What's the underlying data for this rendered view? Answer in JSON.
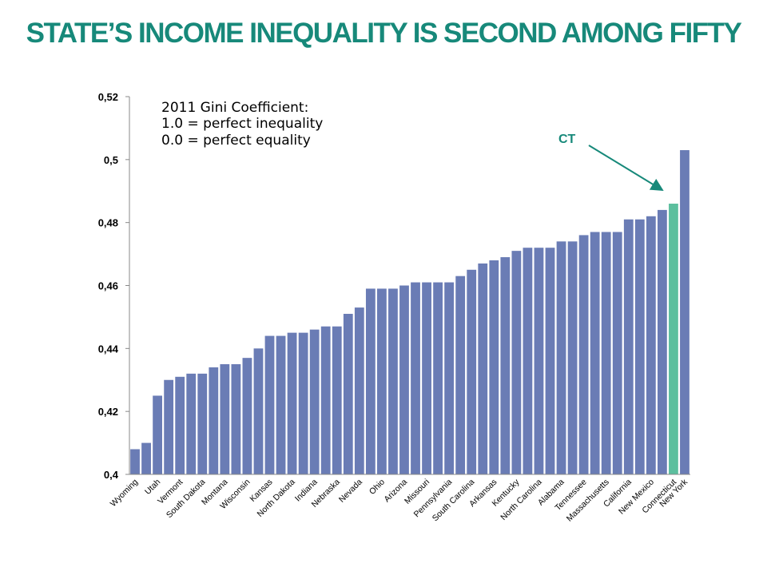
{
  "slide": {
    "title": "STATE’S INCOME INEQUALITY IS SECOND AMONG FIFTY"
  },
  "annotation": {
    "lines": [
      "2011 Gini Coefficient:",
      "1.0 = perfect inequality",
      "0.0 = perfect equality"
    ],
    "callout": "CT"
  },
  "colors": {
    "bar": "#6a7cb5",
    "highlight": "#5cbf9e",
    "accent": "#17897a",
    "axis": "#888888"
  },
  "chart_data": {
    "type": "bar",
    "title": "",
    "xlabel": "",
    "ylabel": "",
    "ylim": [
      0.4,
      0.52
    ],
    "yticks": [
      0.4,
      0.42,
      0.44,
      0.46,
      0.48,
      0.5,
      0.52
    ],
    "ytick_labels": [
      "0,4",
      "0,42",
      "0,44",
      "0,46",
      "0,48",
      "0,5",
      "0,52"
    ],
    "highlight": "Connecticut",
    "grid": false,
    "categories": [
      "Wyoming",
      "",
      "Utah",
      "",
      "Vermont",
      "",
      "South Dakota",
      "",
      "Montana",
      "",
      "Wisconsin",
      "",
      "Kansas",
      "",
      "North Dakota",
      "",
      "Indiana",
      "",
      "Nebraska",
      "",
      "Nevada",
      "",
      "Ohio",
      "",
      "Arizona",
      "",
      "Missouri",
      "",
      "Pennsylvania",
      "",
      "South Carolina",
      "",
      "Arkansas",
      "",
      "Kentucky",
      "",
      "North Carolina",
      "",
      "Alabama",
      "",
      "Tennessee",
      "",
      "Massachusetts",
      "",
      "California",
      "",
      "New Mexico",
      "",
      "Connecticut",
      "New York"
    ],
    "values": [
      0.408,
      0.41,
      0.425,
      0.43,
      0.431,
      0.432,
      0.432,
      0.434,
      0.435,
      0.435,
      0.437,
      0.44,
      0.444,
      0.444,
      0.445,
      0.445,
      0.446,
      0.447,
      0.447,
      0.451,
      0.453,
      0.459,
      0.459,
      0.459,
      0.46,
      0.461,
      0.461,
      0.461,
      0.461,
      0.463,
      0.465,
      0.467,
      0.468,
      0.469,
      0.471,
      0.472,
      0.472,
      0.472,
      0.474,
      0.474,
      0.476,
      0.477,
      0.477,
      0.477,
      0.481,
      0.481,
      0.482,
      0.484,
      0.486,
      0.503
    ]
  }
}
